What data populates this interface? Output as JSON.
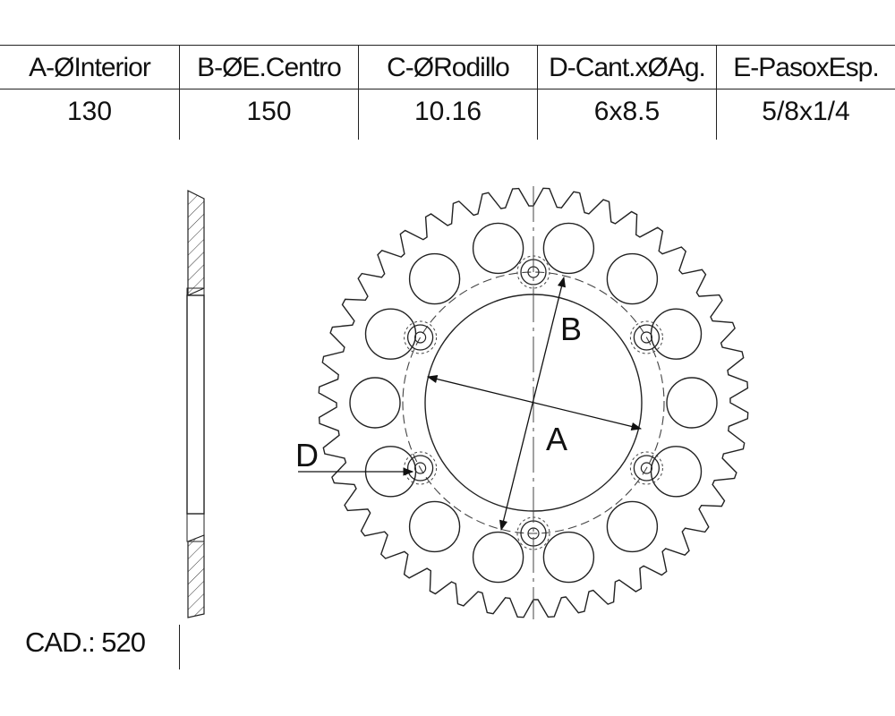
{
  "spec_table": {
    "headers": [
      "A-ØInterior",
      "B-ØE.Centro",
      "C-ØRodillo",
      "D-Cant.xØAg.",
      "E-PasoxEsp."
    ],
    "values": [
      "130",
      "150",
      "10.16",
      "6x8.5",
      "5/8x1/4"
    ]
  },
  "drawing": {
    "teeth_count": 44,
    "lightening_holes": 14,
    "bolt_holes": 6,
    "labels": {
      "a": "A",
      "b": "B",
      "d": "D"
    }
  },
  "footer": {
    "cad": "CAD.: 520"
  }
}
